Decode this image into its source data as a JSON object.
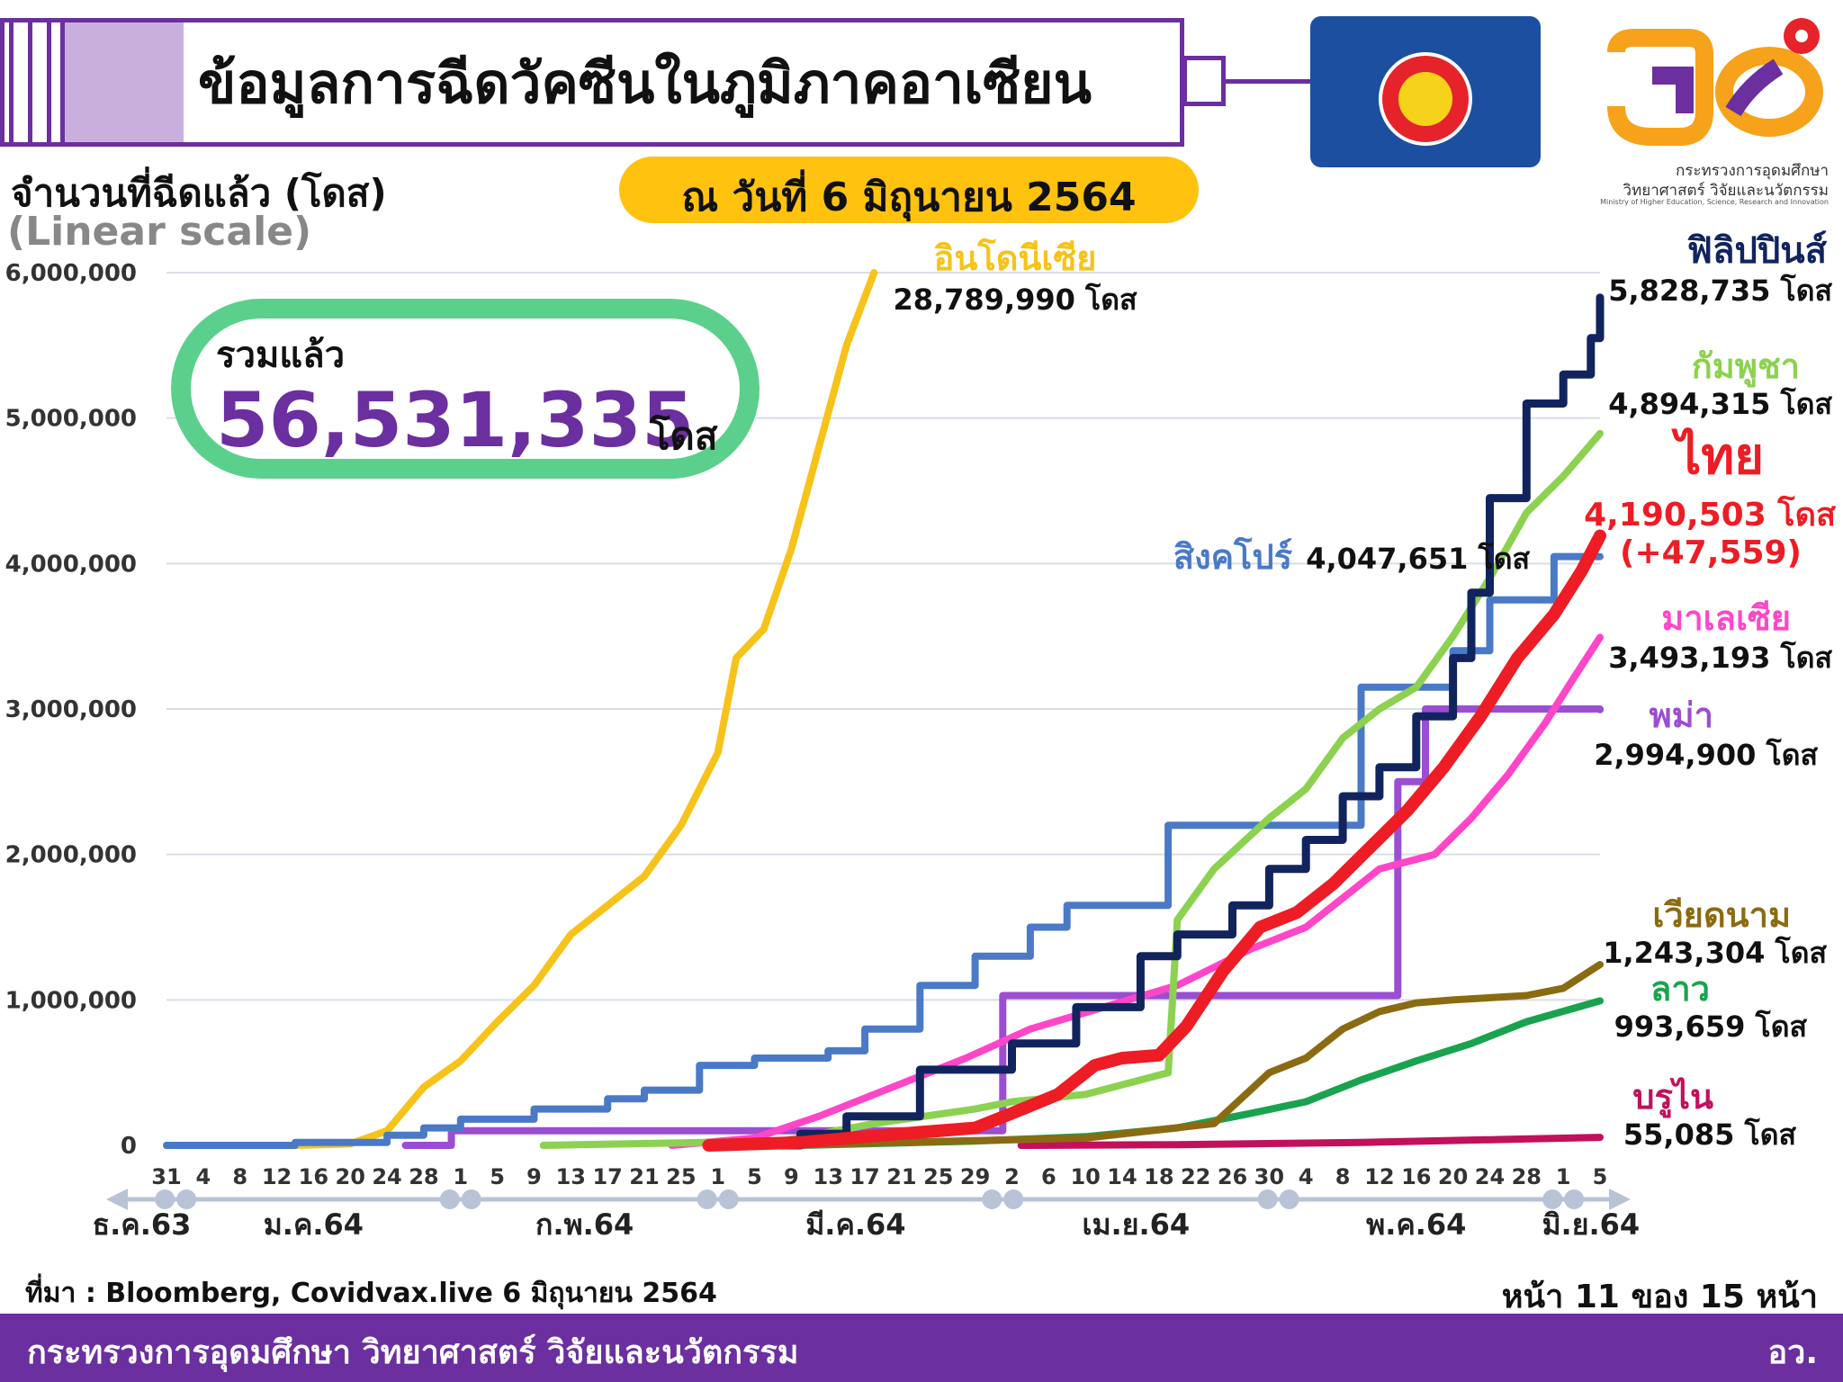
{
  "header": {
    "title": "ข้อมูลการฉีดวัคซีนในภูมิภาคอาเซียน",
    "date": "ณ วันที่ 6 มิถุนายน 2564"
  },
  "axis_title": {
    "main": "จำนวนที่ฉีดแล้ว (โดส)",
    "scale": "(Linear scale)"
  },
  "total": {
    "label": "รวมแล้ว",
    "value": "56,531,335",
    "unit": "โดส"
  },
  "logo": {
    "line1": "กระทรวงการอุดมศึกษา",
    "line2": "วิทยาศาสตร์ วิจัยและนวัตกรรม",
    "line3": "Ministry of Higher Education, Science, Research and Innovation",
    "flag_icon": "asean-flag-icon",
    "emblem_icon": "mhesi-logo-icon"
  },
  "footer": {
    "source": "ที่มา : Bloomberg, Covidvax.live 6 มิถุนายน 2564",
    "page": "หน้า 11 ของ 15 หน้า",
    "ministry": "กระทรวงการอุดมศึกษา วิทยาศาสตร์ วิจัยและนวัตกรรม",
    "abbr": "อว."
  },
  "colors": {
    "purple": "#6b2fa0",
    "yellow": "#ffc20e",
    "green_ring": "#5bd08c",
    "axis": "#b9c3d6"
  },
  "chart_data": {
    "type": "line",
    "ylim": [
      0,
      6000000
    ],
    "yticks": [
      {
        "v": 0,
        "label": "0"
      },
      {
        "v": 1000000,
        "label": "1,000,000"
      },
      {
        "v": 2000000,
        "label": "2,000,000"
      },
      {
        "v": 3000000,
        "label": "3,000,000"
      },
      {
        "v": 4000000,
        "label": "4,000,000"
      },
      {
        "v": 5000000,
        "label": "5,000,000"
      },
      {
        "v": 6000000,
        "label": "6,000,000"
      }
    ],
    "x_start": "2020-12-31",
    "x_end": "2021-06-05",
    "xticks": [
      {
        "d": "2020-12-31",
        "label": "31"
      },
      {
        "d": "2021-01-04",
        "label": "4"
      },
      {
        "d": "2021-01-08",
        "label": "8"
      },
      {
        "d": "2021-01-12",
        "label": "12"
      },
      {
        "d": "2021-01-16",
        "label": "16"
      },
      {
        "d": "2021-01-20",
        "label": "20"
      },
      {
        "d": "2021-01-24",
        "label": "24"
      },
      {
        "d": "2021-01-28",
        "label": "28"
      },
      {
        "d": "2021-02-01",
        "label": "1"
      },
      {
        "d": "2021-02-05",
        "label": "5"
      },
      {
        "d": "2021-02-09",
        "label": "9"
      },
      {
        "d": "2021-02-13",
        "label": "13"
      },
      {
        "d": "2021-02-17",
        "label": "17"
      },
      {
        "d": "2021-02-21",
        "label": "21"
      },
      {
        "d": "2021-02-25",
        "label": "25"
      },
      {
        "d": "2021-03-01",
        "label": "1"
      },
      {
        "d": "2021-03-05",
        "label": "5"
      },
      {
        "d": "2021-03-09",
        "label": "9"
      },
      {
        "d": "2021-03-13",
        "label": "13"
      },
      {
        "d": "2021-03-17",
        "label": "17"
      },
      {
        "d": "2021-03-21",
        "label": "21"
      },
      {
        "d": "2021-03-25",
        "label": "25"
      },
      {
        "d": "2021-03-29",
        "label": "29"
      },
      {
        "d": "2021-04-02",
        "label": "2"
      },
      {
        "d": "2021-04-06",
        "label": "6"
      },
      {
        "d": "2021-04-10",
        "label": "10"
      },
      {
        "d": "2021-04-14",
        "label": "14"
      },
      {
        "d": "2021-04-18",
        "label": "18"
      },
      {
        "d": "2021-04-22",
        "label": "22"
      },
      {
        "d": "2021-04-26",
        "label": "26"
      },
      {
        "d": "2021-04-30",
        "label": "30"
      },
      {
        "d": "2021-05-04",
        "label": "4"
      },
      {
        "d": "2021-05-08",
        "label": "8"
      },
      {
        "d": "2021-05-12",
        "label": "12"
      },
      {
        "d": "2021-05-16",
        "label": "16"
      },
      {
        "d": "2021-05-20",
        "label": "20"
      },
      {
        "d": "2021-05-24",
        "label": "24"
      },
      {
        "d": "2021-05-28",
        "label": "28"
      },
      {
        "d": "2021-06-01",
        "label": "1"
      },
      {
        "d": "2021-06-05",
        "label": "5"
      }
    ],
    "months": [
      {
        "label": "ธ.ค.63",
        "from": "2020-12-25",
        "to": "2020-12-31"
      },
      {
        "label": "ม.ค.64",
        "from": "2021-01-01",
        "to": "2021-01-31"
      },
      {
        "label": "ก.พ.64",
        "from": "2021-02-01",
        "to": "2021-02-28"
      },
      {
        "label": "มี.ค.64",
        "from": "2021-03-01",
        "to": "2021-03-31"
      },
      {
        "label": "เม.ย.64",
        "from": "2021-04-01",
        "to": "2021-04-30"
      },
      {
        "label": "พ.ค.64",
        "from": "2021-05-01",
        "to": "2021-05-31"
      },
      {
        "label": "มิ.ย.64",
        "from": "2021-06-01",
        "to": "2021-06-07"
      }
    ],
    "series": [
      {
        "name": "อินโดนีเซีย",
        "value_label": "28,789,990 โดส",
        "color": "#f7c21a",
        "width": 8,
        "step": false,
        "points": [
          [
            "2021-01-14",
            0
          ],
          [
            "2021-01-20",
            10000
          ],
          [
            "2021-01-24",
            100000
          ],
          [
            "2021-01-28",
            400000
          ],
          [
            "2021-02-01",
            580000
          ],
          [
            "2021-02-05",
            850000
          ],
          [
            "2021-02-09",
            1100000
          ],
          [
            "2021-02-13",
            1450000
          ],
          [
            "2021-02-17",
            1650000
          ],
          [
            "2021-02-21",
            1850000
          ],
          [
            "2021-02-25",
            2200000
          ],
          [
            "2021-03-01",
            2700000
          ],
          [
            "2021-03-03",
            3350000
          ],
          [
            "2021-03-06",
            3550000
          ],
          [
            "2021-03-09",
            4100000
          ],
          [
            "2021-03-12",
            4800000
          ],
          [
            "2021-03-15",
            5500000
          ],
          [
            "2021-03-18",
            6000000
          ]
        ]
      },
      {
        "name": "ฟิลิปปินส์",
        "value_label": "5,828,735 โดส",
        "color": "#12245e",
        "width": 9,
        "step": true,
        "points": [
          [
            "2021-03-01",
            0
          ],
          [
            "2021-03-10",
            80000
          ],
          [
            "2021-03-15",
            200000
          ],
          [
            "2021-03-23",
            520000
          ],
          [
            "2021-03-29",
            520000
          ],
          [
            "2021-04-02",
            700000
          ],
          [
            "2021-04-09",
            950000
          ],
          [
            "2021-04-16",
            1300000
          ],
          [
            "2021-04-20",
            1450000
          ],
          [
            "2021-04-26",
            1650000
          ],
          [
            "2021-04-30",
            1900000
          ],
          [
            "2021-05-04",
            2100000
          ],
          [
            "2021-05-08",
            2400000
          ],
          [
            "2021-05-12",
            2600000
          ],
          [
            "2021-05-16",
            2950000
          ],
          [
            "2021-05-20",
            3350000
          ],
          [
            "2021-05-22",
            3800000
          ],
          [
            "2021-05-24",
            4450000
          ],
          [
            "2021-05-28",
            5100000
          ],
          [
            "2021-06-01",
            5300000
          ],
          [
            "2021-06-04",
            5550000
          ],
          [
            "2021-06-05",
            5828735
          ]
        ]
      },
      {
        "name": "กัมพูชา",
        "value_label": "4,894,315 โดส",
        "color": "#8cd150",
        "width": 8,
        "step": false,
        "points": [
          [
            "2021-02-10",
            0
          ],
          [
            "2021-03-08",
            30000
          ],
          [
            "2021-03-18",
            150000
          ],
          [
            "2021-03-29",
            250000
          ],
          [
            "2021-04-02",
            300000
          ],
          [
            "2021-04-10",
            350000
          ],
          [
            "2021-04-19",
            500000
          ],
          [
            "2021-04-20",
            1550000
          ],
          [
            "2021-04-24",
            1900000
          ],
          [
            "2021-04-30",
            2250000
          ],
          [
            "2021-05-04",
            2450000
          ],
          [
            "2021-05-08",
            2800000
          ],
          [
            "2021-05-12",
            3000000
          ],
          [
            "2021-05-16",
            3150000
          ],
          [
            "2021-05-20",
            3500000
          ],
          [
            "2021-05-24",
            3900000
          ],
          [
            "2021-05-28",
            4350000
          ],
          [
            "2021-06-01",
            4600000
          ],
          [
            "2021-06-05",
            4894315
          ]
        ]
      },
      {
        "name": "ไทย",
        "value_label": "4,190,503 โดส",
        "note": "(+47,559)",
        "color": "#ee1c24",
        "width": 14,
        "step": false,
        "points": [
          [
            "2021-02-28",
            0
          ],
          [
            "2021-03-10",
            20000
          ],
          [
            "2021-03-17",
            60000
          ],
          [
            "2021-03-29",
            120000
          ],
          [
            "2021-04-02",
            220000
          ],
          [
            "2021-04-07",
            350000
          ],
          [
            "2021-04-11",
            550000
          ],
          [
            "2021-04-14",
            600000
          ],
          [
            "2021-04-18",
            620000
          ],
          [
            "2021-04-21",
            820000
          ],
          [
            "2021-04-25",
            1200000
          ],
          [
            "2021-04-29",
            1500000
          ],
          [
            "2021-05-03",
            1600000
          ],
          [
            "2021-05-07",
            1800000
          ],
          [
            "2021-05-11",
            2050000
          ],
          [
            "2021-05-15",
            2300000
          ],
          [
            "2021-05-19",
            2600000
          ],
          [
            "2021-05-23",
            2950000
          ],
          [
            "2021-05-27",
            3350000
          ],
          [
            "2021-05-31",
            3650000
          ],
          [
            "2021-06-03",
            3950000
          ],
          [
            "2021-06-05",
            4190503
          ]
        ]
      },
      {
        "name": "สิงคโปร์",
        "value_label": "4,047,651 โดส",
        "color": "#4a7ac6",
        "width": 8,
        "step": true,
        "points": [
          [
            "2020-12-31",
            0
          ],
          [
            "2021-01-14",
            20000
          ],
          [
            "2021-01-24",
            70000
          ],
          [
            "2021-01-28",
            120000
          ],
          [
            "2021-02-01",
            180000
          ],
          [
            "2021-02-09",
            250000
          ],
          [
            "2021-02-17",
            320000
          ],
          [
            "2021-02-21",
            380000
          ],
          [
            "2021-02-27",
            550000
          ],
          [
            "2021-03-05",
            600000
          ],
          [
            "2021-03-13",
            650000
          ],
          [
            "2021-03-17",
            800000
          ],
          [
            "2021-03-23",
            1100000
          ],
          [
            "2021-03-29",
            1300000
          ],
          [
            "2021-04-04",
            1500000
          ],
          [
            "2021-04-08",
            1650000
          ],
          [
            "2021-04-19",
            2200000
          ],
          [
            "2021-05-10",
            3150000
          ],
          [
            "2021-05-20",
            3400000
          ],
          [
            "2021-05-24",
            3750000
          ],
          [
            "2021-05-31",
            4047651
          ],
          [
            "2021-06-05",
            4047651
          ]
        ]
      },
      {
        "name": "มาเลเซีย",
        "value_label": "3,493,193 โดส",
        "color": "#ff46c8",
        "width": 8,
        "step": false,
        "points": [
          [
            "2021-02-24",
            0
          ],
          [
            "2021-03-05",
            50000
          ],
          [
            "2021-03-12",
            200000
          ],
          [
            "2021-03-20",
            400000
          ],
          [
            "2021-03-28",
            600000
          ],
          [
            "2021-04-04",
            800000
          ],
          [
            "2021-04-12",
            950000
          ],
          [
            "2021-04-20",
            1100000
          ],
          [
            "2021-04-28",
            1350000
          ],
          [
            "2021-05-04",
            1500000
          ],
          [
            "2021-05-08",
            1700000
          ],
          [
            "2021-05-12",
            1900000
          ],
          [
            "2021-05-18",
            2000000
          ],
          [
            "2021-05-22",
            2250000
          ],
          [
            "2021-05-26",
            2550000
          ],
          [
            "2021-05-30",
            2900000
          ],
          [
            "2021-06-02",
            3200000
          ],
          [
            "2021-06-05",
            3493193
          ]
        ]
      },
      {
        "name": "พม่า",
        "value_label": "2,994,900 โดส",
        "color": "#9b4ed1",
        "width": 8,
        "step": true,
        "points": [
          [
            "2021-01-26",
            0
          ],
          [
            "2021-01-31",
            100000
          ],
          [
            "2021-03-31",
            100000
          ],
          [
            "2021-04-01",
            1030000
          ],
          [
            "2021-05-11",
            1030000
          ],
          [
            "2021-05-14",
            2500000
          ],
          [
            "2021-05-17",
            3000000
          ],
          [
            "2021-06-05",
            2994900
          ]
        ]
      },
      {
        "name": "เวียดนาม",
        "value_label": "1,243,304 โดส",
        "color": "#8b6b12",
        "width": 8,
        "step": false,
        "points": [
          [
            "2021-03-08",
            0
          ],
          [
            "2021-03-20",
            20000
          ],
          [
            "2021-04-10",
            50000
          ],
          [
            "2021-04-24",
            150000
          ],
          [
            "2021-04-30",
            500000
          ],
          [
            "2021-05-04",
            600000
          ],
          [
            "2021-05-08",
            800000
          ],
          [
            "2021-05-12",
            920000
          ],
          [
            "2021-05-16",
            980000
          ],
          [
            "2021-05-20",
            1000000
          ],
          [
            "2021-05-28",
            1030000
          ],
          [
            "2021-06-01",
            1080000
          ],
          [
            "2021-06-05",
            1243304
          ]
        ]
      },
      {
        "name": "ลาว",
        "value_label": "993,659 โดส",
        "color": "#1aa34f",
        "width": 8,
        "step": false,
        "points": [
          [
            "2021-03-10",
            0
          ],
          [
            "2021-03-29",
            30000
          ],
          [
            "2021-04-10",
            60000
          ],
          [
            "2021-04-20",
            120000
          ],
          [
            "2021-04-28",
            220000
          ],
          [
            "2021-05-04",
            300000
          ],
          [
            "2021-05-10",
            450000
          ],
          [
            "2021-05-16",
            580000
          ],
          [
            "2021-05-22",
            700000
          ],
          [
            "2021-05-28",
            850000
          ],
          [
            "2021-06-05",
            993659
          ]
        ]
      },
      {
        "name": "บรูไน",
        "value_label": "55,085 โดส",
        "color": "#c2105a",
        "width": 8,
        "step": false,
        "points": [
          [
            "2021-04-03",
            0
          ],
          [
            "2021-04-20",
            5000
          ],
          [
            "2021-05-10",
            20000
          ],
          [
            "2021-05-25",
            40000
          ],
          [
            "2021-06-05",
            55085
          ]
        ]
      }
    ]
  }
}
